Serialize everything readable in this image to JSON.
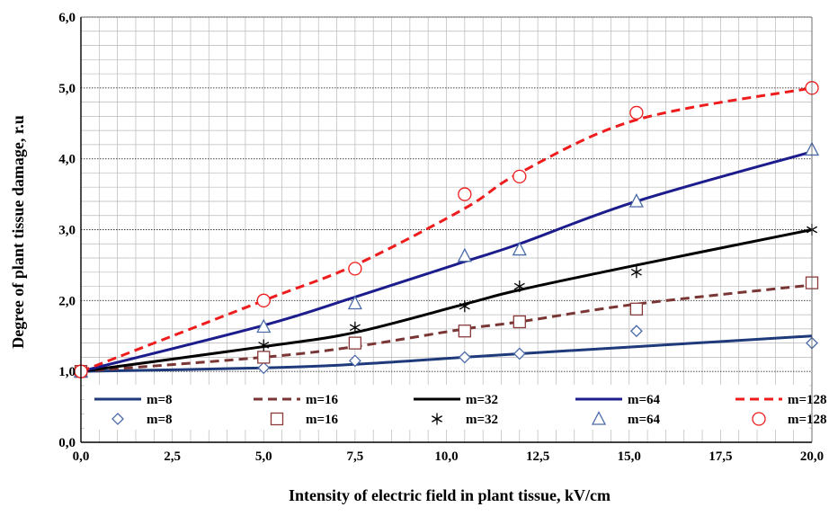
{
  "chart_data": {
    "type": "line",
    "xlabel": "Intensity of electric field in plant tissue, kV/cm",
    "ylabel": "Degree of plant tissue damage, r.u",
    "xlim": [
      0,
      20
    ],
    "ylim": [
      0,
      6
    ],
    "x_ticks": [
      "0,0",
      "2,5",
      "5,0",
      "7,5",
      "10,0",
      "12,5",
      "15,0",
      "17,5",
      "20,0"
    ],
    "x_tick_values": [
      0,
      2.5,
      5,
      7.5,
      10,
      12.5,
      15,
      17.5,
      20
    ],
    "y_ticks": [
      "0,0",
      "1,0",
      "2,0",
      "3,0",
      "4,0",
      "5,0",
      "6,0"
    ],
    "y_tick_values": [
      0,
      1,
      2,
      3,
      4,
      5,
      6
    ],
    "grid": true,
    "legend_placement": "bottom, inside plot area",
    "series": [
      {
        "name": "m=8",
        "kind": "line",
        "color": "#1f3a7a",
        "dash": "solid",
        "x": [
          0,
          5,
          7.5,
          10.5,
          12,
          15.2,
          20
        ],
        "y": [
          1.0,
          1.05,
          1.1,
          1.2,
          1.25,
          1.35,
          1.5
        ]
      },
      {
        "name": "m=16",
        "kind": "line",
        "color": "#7a3535",
        "dash": "dashed",
        "x": [
          0,
          5,
          7.5,
          10.5,
          12,
          15.2,
          20
        ],
        "y": [
          1.0,
          1.2,
          1.35,
          1.6,
          1.7,
          1.95,
          2.22
        ]
      },
      {
        "name": "m=32",
        "kind": "line",
        "color": "#000000",
        "dash": "solid",
        "x": [
          0,
          5,
          7.5,
          10.5,
          12,
          15.2,
          20
        ],
        "y": [
          1.0,
          1.35,
          1.55,
          1.95,
          2.15,
          2.5,
          3.0
        ]
      },
      {
        "name": "m=64",
        "kind": "line",
        "color": "#1c1c8c",
        "dash": "solid",
        "x": [
          0,
          5,
          7.5,
          10.5,
          12,
          15.2,
          20
        ],
        "y": [
          1.0,
          1.65,
          2.05,
          2.55,
          2.8,
          3.4,
          4.1
        ]
      },
      {
        "name": "m=128",
        "kind": "line",
        "color": "#ee1c1c",
        "dash": "dashed",
        "x": [
          0,
          5,
          7.5,
          10.5,
          12,
          15.2,
          20
        ],
        "y": [
          1.0,
          2.0,
          2.5,
          3.3,
          3.8,
          4.55,
          5.0
        ]
      },
      {
        "name": "m=8",
        "kind": "marker",
        "marker": "diamond",
        "color": "#4a6aa8",
        "x": [
          0,
          5,
          7.5,
          10.5,
          12,
          15.2,
          20
        ],
        "y": [
          1.0,
          1.05,
          1.15,
          1.2,
          1.25,
          1.57,
          1.4
        ]
      },
      {
        "name": "m=16",
        "kind": "marker",
        "marker": "square",
        "color": "#8a3a3a",
        "x": [
          0,
          5,
          7.5,
          10.5,
          12,
          15.2,
          20
        ],
        "y": [
          1.0,
          1.2,
          1.4,
          1.57,
          1.7,
          1.88,
          2.25
        ]
      },
      {
        "name": "m=32",
        "kind": "marker",
        "marker": "asterisk",
        "color": "#000000",
        "x": [
          0,
          5,
          7.5,
          10.5,
          12,
          15.2,
          20
        ],
        "y": [
          1.0,
          1.37,
          1.62,
          1.92,
          2.2,
          2.4,
          3.0
        ]
      },
      {
        "name": "m=64",
        "kind": "marker",
        "marker": "triangle",
        "color": "#4a6aa8",
        "x": [
          0,
          5,
          7.5,
          10.5,
          12,
          15.2,
          20
        ],
        "y": [
          1.0,
          1.63,
          1.96,
          2.63,
          2.72,
          3.4,
          4.13
        ]
      },
      {
        "name": "m=128",
        "kind": "marker",
        "marker": "circle",
        "color": "#ee1c1c",
        "x": [
          0,
          5,
          7.5,
          10.5,
          12,
          15.2,
          20
        ],
        "y": [
          1.0,
          2.0,
          2.45,
          3.5,
          3.75,
          4.65,
          5.0
        ]
      }
    ]
  }
}
